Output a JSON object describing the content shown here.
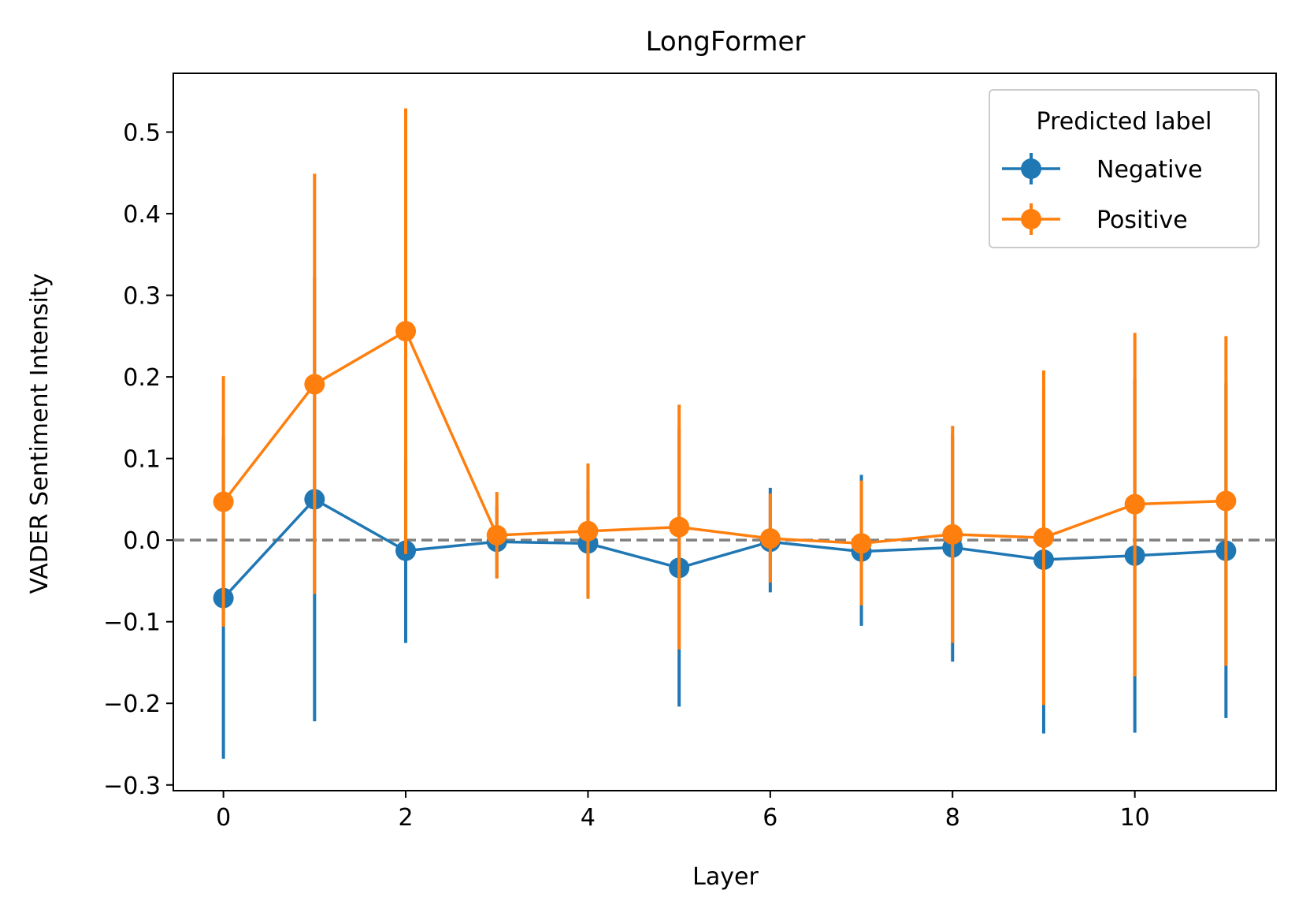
{
  "chart_data": {
    "type": "line",
    "title": "LongFormer",
    "xlabel": "Layer",
    "ylabel": "VADER Sentiment Intensity",
    "xlim": [
      -0.55,
      11.55
    ],
    "ylim": [
      -0.307,
      0.572
    ],
    "xticks": [
      0,
      2,
      4,
      6,
      8,
      10
    ],
    "xtick_labels": [
      "0",
      "2",
      "4",
      "6",
      "8",
      "10"
    ],
    "yticks": [
      -0.3,
      -0.2,
      -0.1,
      0.0,
      0.1,
      0.2,
      0.3,
      0.4,
      0.5
    ],
    "ytick_labels": [
      "−0.3",
      "−0.2",
      "−0.1",
      "0.0",
      "0.1",
      "0.2",
      "0.3",
      "0.4",
      "0.5"
    ],
    "grid": false,
    "reference_line": {
      "y": 0.0,
      "style": "dashed",
      "color": "#808080"
    },
    "legend": {
      "title": "Predicted label",
      "placement": "top-right"
    },
    "x": [
      0,
      1,
      2,
      3,
      4,
      5,
      6,
      7,
      8,
      9,
      10,
      11
    ],
    "series": [
      {
        "name": "Negative",
        "color": "#1f77b4",
        "values": [
          -0.071,
          0.05,
          -0.013,
          -0.002,
          -0.004,
          -0.034,
          -0.002,
          -0.014,
          -0.009,
          -0.024,
          -0.019,
          -0.013
        ],
        "err_low": [
          -0.268,
          -0.222,
          -0.126,
          -0.046,
          -0.07,
          -0.204,
          -0.064,
          -0.105,
          -0.149,
          -0.237,
          -0.236,
          -0.218
        ],
        "err_high": [
          0.127,
          0.322,
          0.1,
          0.042,
          0.062,
          0.136,
          0.064,
          0.08,
          0.131,
          0.189,
          0.198,
          0.192
        ]
      },
      {
        "name": "Positive",
        "color": "#ff7f0e",
        "values": [
          0.047,
          0.191,
          0.256,
          0.006,
          0.011,
          0.016,
          0.002,
          -0.004,
          0.007,
          0.003,
          0.044,
          0.048
        ],
        "err_low": [
          -0.106,
          -0.066,
          -0.017,
          -0.047,
          -0.072,
          -0.134,
          -0.052,
          -0.08,
          -0.126,
          -0.202,
          -0.167,
          -0.154
        ],
        "err_high": [
          0.201,
          0.449,
          0.529,
          0.059,
          0.094,
          0.166,
          0.057,
          0.073,
          0.14,
          0.208,
          0.254,
          0.25
        ]
      }
    ]
  }
}
